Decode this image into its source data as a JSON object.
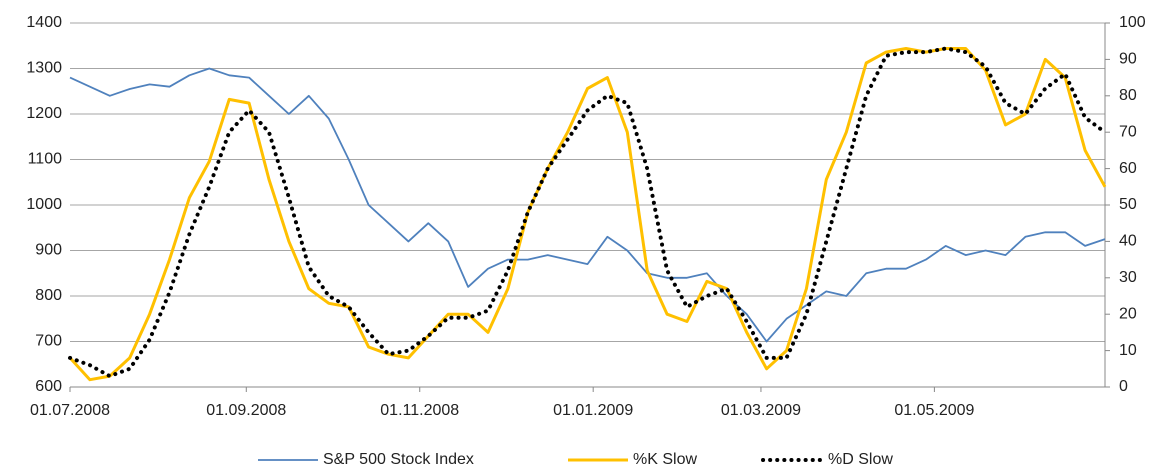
{
  "chart_data": {
    "type": "line",
    "x": [
      "01.07.2008",
      "08.07.2008",
      "15.07.2008",
      "22.07.2008",
      "29.07.2008",
      "05.08.2008",
      "12.08.2008",
      "19.08.2008",
      "26.08.2008",
      "02.09.2008",
      "09.09.2008",
      "16.09.2008",
      "23.09.2008",
      "30.09.2008",
      "07.10.2008",
      "14.10.2008",
      "21.10.2008",
      "28.10.2008",
      "04.11.2008",
      "11.11.2008",
      "18.11.2008",
      "25.11.2008",
      "02.12.2008",
      "09.12.2008",
      "16.12.2008",
      "23.12.2008",
      "30.12.2008",
      "06.01.2009",
      "13.01.2009",
      "20.01.2009",
      "27.01.2009",
      "03.02.2009",
      "10.02.2009",
      "17.02.2009",
      "24.02.2009",
      "03.03.2009",
      "10.03.2009",
      "17.03.2009",
      "24.03.2009",
      "31.03.2009",
      "07.04.2009",
      "14.04.2009",
      "21.04.2009",
      "28.04.2009",
      "05.05.2009",
      "12.05.2009",
      "19.05.2009",
      "26.05.2009",
      "02.06.2009",
      "09.06.2009",
      "16.06.2009",
      "23.06.2009",
      "30.06.2009"
    ],
    "series": [
      {
        "name": "S&P 500 Stock Index",
        "color": "#4f81bd",
        "values": [
          1280,
          1260,
          1240,
          1255,
          1265,
          1260,
          1285,
          1300,
          1285,
          1280,
          1240,
          1200,
          1240,
          1190,
          1100,
          1000,
          960,
          920,
          960,
          920,
          820,
          860,
          880,
          880,
          890,
          880,
          870,
          930,
          900,
          850,
          840,
          840,
          850,
          800,
          760,
          700,
          750,
          780,
          810,
          800,
          850,
          860,
          860,
          880,
          910,
          890,
          900,
          890,
          930,
          940,
          940,
          910,
          925
        ]
      },
      {
        "name": "%K Slow",
        "color": "#ffc000",
        "axis": "y2",
        "values": [
          8,
          2,
          3,
          8,
          20,
          35,
          52,
          62,
          79,
          78,
          57,
          40,
          27,
          23,
          22,
          11,
          9,
          8,
          14,
          20,
          20,
          15,
          27,
          48,
          60,
          70,
          82,
          85,
          70,
          32,
          20,
          18,
          29,
          27,
          15,
          5,
          10,
          27,
          57,
          70,
          89,
          92,
          93,
          92,
          93,
          93,
          87,
          72,
          75,
          90,
          85,
          65,
          55
        ]
      },
      {
        "name": "%D Slow",
        "color": "#000000",
        "axis": "y2",
        "values": [
          8,
          6,
          3,
          5,
          13,
          26,
          42,
          55,
          70,
          76,
          70,
          52,
          33,
          25,
          22,
          15,
          9,
          10,
          14,
          19,
          19,
          21,
          32,
          48,
          60,
          68,
          76,
          80,
          78,
          60,
          32,
          22,
          25,
          27,
          18,
          8,
          8,
          20,
          40,
          60,
          80,
          91,
          92,
          92,
          93,
          92,
          88,
          78,
          75,
          82,
          86,
          74,
          70
        ]
      }
    ],
    "xlim": [
      "01.07.2008",
      "30.06.2009"
    ],
    "xticks": [
      "01.07.2008",
      "01.09.2008",
      "01.11.2008",
      "01.01.2009",
      "01.03.2009",
      "01.05.2009"
    ],
    "ylim": [
      600,
      1400
    ],
    "yticks": [
      600,
      700,
      800,
      900,
      1000,
      1100,
      1200,
      1300,
      1400
    ],
    "y2lim": [
      0,
      100
    ],
    "y2ticks": [
      0,
      10,
      20,
      30,
      40,
      50,
      60,
      70,
      80,
      90,
      100
    ],
    "grid": true,
    "legend": "bottom"
  }
}
